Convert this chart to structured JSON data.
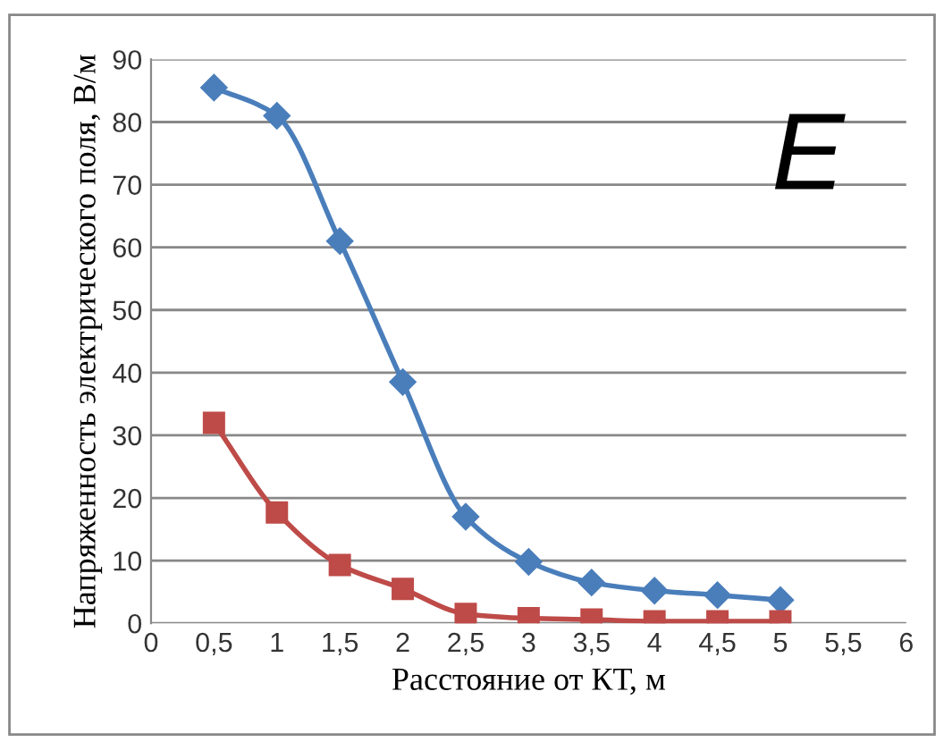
{
  "chart_data": {
    "type": "line",
    "xlabel": "Расстояние от КТ, м",
    "ylabel": "Напряженность электрического поля, В/м",
    "annotations": [
      "E"
    ],
    "x": [
      0.5,
      1,
      1.5,
      2,
      2.5,
      3,
      3.5,
      4,
      4.5,
      5
    ],
    "series": [
      {
        "color": "#4a7ebb",
        "marker": "diamond",
        "values": [
          85.5,
          81,
          61,
          38.5,
          17,
          9.8,
          6.5,
          5.2,
          4.5,
          3.7
        ]
      },
      {
        "color": "#be4b48",
        "marker": "square",
        "values": [
          32,
          17.7,
          9.3,
          5.5,
          1.5,
          0.8,
          0.6,
          0.3,
          0.3,
          0.3
        ]
      }
    ],
    "xlim": [
      0,
      6
    ],
    "xticks": [
      0,
      {
        "value": 0.5,
        "label": "0,5"
      },
      1,
      {
        "value": 1.5,
        "label": "1,5"
      },
      2,
      {
        "value": 2.5,
        "label": "2,5"
      },
      3,
      {
        "value": 3.5,
        "label": "3,5"
      },
      4,
      {
        "value": 4.5,
        "label": "4,5"
      },
      5,
      {
        "value": 5.5,
        "label": "5,5"
      },
      6
    ],
    "ylim": [
      0,
      90
    ],
    "yticks": [
      0,
      10,
      20,
      30,
      40,
      50,
      60,
      70,
      80,
      90
    ],
    "grid": "y",
    "legend": false,
    "line_style": "solid"
  }
}
